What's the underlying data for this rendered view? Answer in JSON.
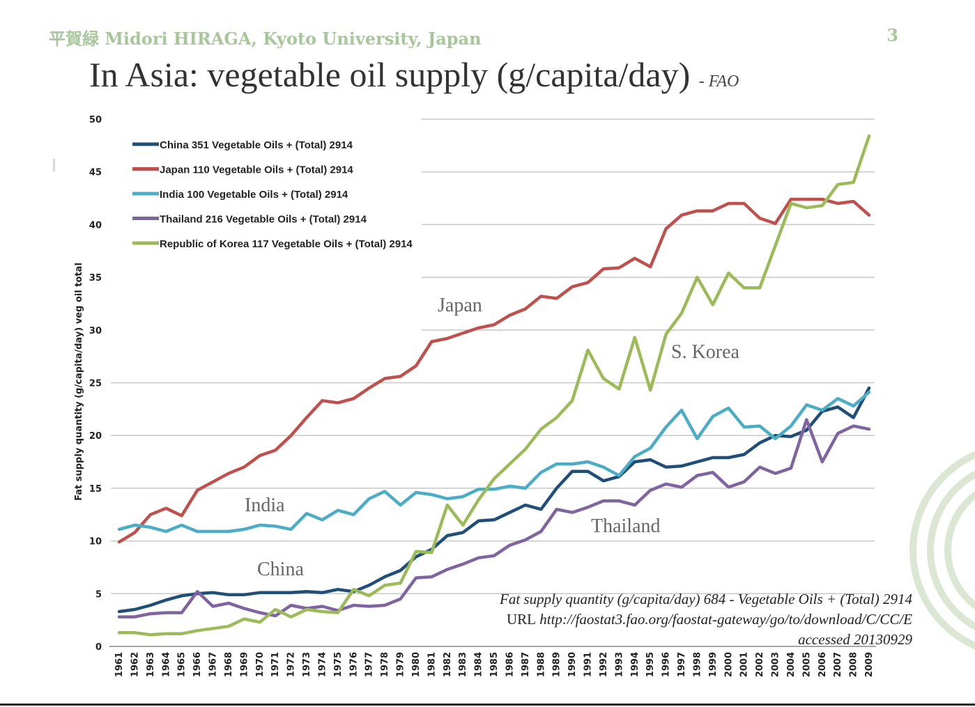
{
  "header": {
    "author": "平賀緑 Midori HIRAGA, Kyoto University, Japan",
    "page_number": "3",
    "title": "In Asia: vegetable oil supply (g/capita/day)",
    "title_source": "- FAO"
  },
  "source_note": {
    "line1": "Fat supply quantity (g/capita/day) 684 - Vegetable Oils + (Total) 2914",
    "line2_prefix": "URL",
    "line2_url": "http://faostat3.fao.org/faostat-gateway/go/to/download/C/CC/E",
    "line3": "accessed 20130929"
  },
  "chart_data": {
    "type": "line",
    "title": "",
    "xlabel": "",
    "ylabel": "Fat supply quantity (g/capita/day) veg oil total",
    "ylim": [
      0,
      50
    ],
    "yticks": [
      0,
      5,
      10,
      15,
      20,
      25,
      30,
      35,
      40,
      45,
      50
    ],
    "grid": true,
    "legend_position": "top-left",
    "categories": [
      "1961",
      "1962",
      "1963",
      "1964",
      "1965",
      "1966",
      "1967",
      "1968",
      "1969",
      "1970",
      "1971",
      "1972",
      "1973",
      "1974",
      "1975",
      "1976",
      "1977",
      "1978",
      "1979",
      "1980",
      "1981",
      "1982",
      "1983",
      "1984",
      "1985",
      "1986",
      "1987",
      "1988",
      "1989",
      "1990",
      "1991",
      "1992",
      "1993",
      "1994",
      "1995",
      "1996",
      "1997",
      "1998",
      "1999",
      "2000",
      "2001",
      "2002",
      "2003",
      "2004",
      "2005",
      "2006",
      "2007",
      "2008",
      "2009"
    ],
    "series": [
      {
        "name": "China 351 Vegetable Oils + (Total) 2914",
        "color": "#1f4e79",
        "values": [
          3.3,
          3.5,
          3.9,
          4.4,
          4.8,
          5.0,
          5.1,
          4.9,
          4.9,
          5.1,
          5.1,
          5.1,
          5.2,
          5.1,
          5.4,
          5.2,
          5.8,
          6.6,
          7.2,
          8.5,
          9.2,
          10.5,
          10.8,
          11.9,
          12.0,
          12.7,
          13.4,
          13.0,
          15.0,
          16.6,
          16.6,
          15.7,
          16.1,
          17.5,
          17.7,
          17.0,
          17.1,
          17.5,
          17.9,
          17.9,
          18.2,
          19.3,
          20.0,
          19.9,
          20.5,
          22.3,
          22.7,
          21.7,
          24.5
        ]
      },
      {
        "name": "Japan 110 Vegetable Oils + (Total) 2914",
        "color": "#c0504d",
        "values": [
          9.9,
          10.8,
          12.5,
          13.1,
          12.4,
          14.8,
          15.6,
          16.4,
          17.0,
          18.1,
          18.6,
          20.0,
          21.7,
          23.3,
          23.1,
          23.5,
          24.5,
          25.4,
          25.6,
          26.6,
          28.9,
          29.2,
          29.7,
          30.2,
          30.5,
          31.4,
          32.0,
          33.2,
          33.0,
          34.1,
          34.5,
          35.8,
          35.9,
          36.8,
          36.0,
          39.6,
          40.9,
          41.3,
          41.3,
          42.0,
          42.0,
          40.6,
          40.1,
          42.4,
          42.4,
          42.4,
          42.0,
          42.2,
          40.9
        ]
      },
      {
        "name": "India 100 Vegetable Oils + (Total) 2914",
        "color": "#4bacc6",
        "values": [
          11.1,
          11.5,
          11.3,
          10.9,
          11.5,
          10.9,
          10.9,
          10.9,
          11.1,
          11.5,
          11.4,
          11.1,
          12.6,
          12.0,
          12.9,
          12.5,
          14.0,
          14.7,
          13.4,
          14.6,
          14.4,
          14.0,
          14.2,
          14.9,
          14.9,
          15.2,
          15.0,
          16.5,
          17.3,
          17.3,
          17.5,
          17.0,
          16.2,
          18.0,
          18.8,
          20.8,
          22.4,
          19.7,
          21.8,
          22.6,
          20.8,
          20.9,
          19.7,
          20.9,
          22.9,
          22.4,
          23.5,
          22.8,
          24.1
        ]
      },
      {
        "name": "Thailand 216 Vegetable Oils + (Total) 2914",
        "color": "#8064a2",
        "values": [
          2.8,
          2.8,
          3.1,
          3.2,
          3.2,
          5.2,
          3.8,
          4.1,
          3.6,
          3.2,
          2.9,
          3.9,
          3.6,
          3.8,
          3.4,
          3.9,
          3.8,
          3.9,
          4.5,
          6.5,
          6.6,
          7.3,
          7.8,
          8.4,
          8.6,
          9.6,
          10.1,
          10.9,
          13.0,
          12.7,
          13.2,
          13.8,
          13.8,
          13.4,
          14.8,
          15.4,
          15.1,
          16.2,
          16.5,
          15.1,
          15.6,
          17.0,
          16.4,
          16.9,
          21.5,
          17.5,
          20.2,
          20.9,
          20.6
        ]
      },
      {
        "name": "Republic of Korea 117 Vegetable Oils + (Total) 2914",
        "color": "#9bbb59",
        "values": [
          1.3,
          1.3,
          1.1,
          1.2,
          1.2,
          1.5,
          1.7,
          1.9,
          2.6,
          2.3,
          3.5,
          2.8,
          3.5,
          3.3,
          3.2,
          5.4,
          4.8,
          5.8,
          6.0,
          9.0,
          8.9,
          13.4,
          11.5,
          13.9,
          15.9,
          17.3,
          18.7,
          20.6,
          21.7,
          23.3,
          28.1,
          25.4,
          24.4,
          29.3,
          24.3,
          29.6,
          31.6,
          35.0,
          32.4,
          35.4,
          34.0,
          34.0,
          38.0,
          42.0,
          41.6,
          41.8,
          43.8,
          44.0,
          48.4
        ]
      }
    ],
    "annotations": [
      {
        "text": "Japan",
        "series": "Japan"
      },
      {
        "text": "S. Korea",
        "series": "Republic of Korea"
      },
      {
        "text": "India",
        "series": "India"
      },
      {
        "text": "Thailand",
        "series": "Thailand"
      },
      {
        "text": "China",
        "series": "China"
      }
    ]
  }
}
